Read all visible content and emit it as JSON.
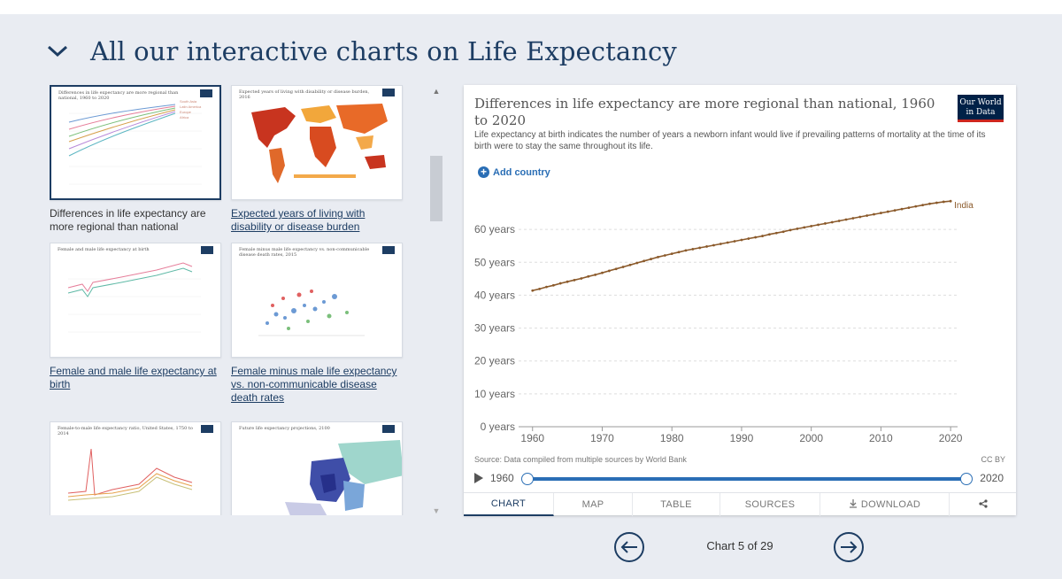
{
  "header": {
    "title": "All our interactive charts on Life Expectancy"
  },
  "gallery": [
    {
      "caption": "Differences in life expectancy are more regional than national",
      "thumb_title": "Differences in life expectancy are more regional than national, 1960 to 2020",
      "active": true
    },
    {
      "caption": "Expected years of living with disability or disease burden",
      "thumb_title": "Expected years of living with disability or disease burden, 2016",
      "active": false
    },
    {
      "caption": "Female and male life expectancy at birth",
      "thumb_title": "Female and male life expectancy at birth",
      "active": false
    },
    {
      "caption": "Female minus male life expectancy vs. non-communicable disease death rates",
      "thumb_title": "Female minus male life expectancy vs. non-communicable disease death rates, 2015",
      "active": false
    },
    {
      "caption": "",
      "thumb_title": "Female-to-male life expectancy ratio, United States, 1750 to 2014",
      "active": false
    },
    {
      "caption": "",
      "thumb_title": "Future life expectancy projections, 2100",
      "active": false
    }
  ],
  "panel": {
    "title": "Differences in life expectancy are more regional than national, 1960 to 2020",
    "subtitle": "Life expectancy at birth indicates the number of years a newborn infant would live if prevailing patterns of mortality at the time of its birth were to stay the same throughout its life.",
    "logo": {
      "line1": "Our World",
      "line2": "in Data"
    },
    "add_country": "Add country",
    "source": "Source: Data compiled from multiple sources by World Bank",
    "license": "CC BY",
    "timeline": {
      "start": "1960",
      "end": "2020"
    },
    "tabs": [
      "CHART",
      "MAP",
      "TABLE",
      "SOURCES",
      "DOWNLOAD"
    ]
  },
  "chart_data": {
    "type": "line",
    "title": "Differences in life expectancy are more regional than national, 1960 to 2020",
    "xlabel": "",
    "ylabel": "",
    "xlim": [
      1958,
      2021
    ],
    "ylim": [
      0,
      70
    ],
    "x_ticks": [
      1960,
      1970,
      1980,
      1990,
      2000,
      2010,
      2020
    ],
    "y_ticks": [
      0,
      10,
      20,
      30,
      40,
      50,
      60
    ],
    "y_tick_labels": [
      "0 years",
      "10 years",
      "20 years",
      "30 years",
      "40 years",
      "50 years",
      "60 years"
    ],
    "x_tick_labels": [
      "1960",
      "1970",
      "1980",
      "1990",
      "2000",
      "2010",
      "2020"
    ],
    "grid": true,
    "series": [
      {
        "name": "India",
        "color": "#8b5a2b",
        "x": [
          1960,
          1961,
          1962,
          1963,
          1964,
          1965,
          1966,
          1967,
          1968,
          1969,
          1970,
          1971,
          1972,
          1973,
          1974,
          1975,
          1976,
          1977,
          1978,
          1979,
          1980,
          1981,
          1982,
          1983,
          1984,
          1985,
          1986,
          1987,
          1988,
          1989,
          1990,
          1991,
          1992,
          1993,
          1994,
          1995,
          1996,
          1997,
          1998,
          1999,
          2000,
          2001,
          2002,
          2003,
          2004,
          2005,
          2006,
          2007,
          2008,
          2009,
          2010,
          2011,
          2012,
          2013,
          2014,
          2015,
          2016,
          2017,
          2018,
          2019,
          2020
        ],
        "values": [
          41.4,
          41.9,
          42.5,
          43.0,
          43.6,
          44.1,
          44.6,
          45.1,
          45.7,
          46.2,
          46.8,
          47.4,
          48.0,
          48.6,
          49.2,
          49.8,
          50.4,
          51.0,
          51.6,
          52.1,
          52.6,
          53.1,
          53.6,
          54.0,
          54.4,
          54.8,
          55.2,
          55.6,
          56.0,
          56.4,
          56.8,
          57.2,
          57.6,
          58.0,
          58.5,
          58.9,
          59.3,
          59.8,
          60.2,
          60.6,
          61.0,
          61.4,
          61.8,
          62.2,
          62.6,
          63.0,
          63.4,
          63.8,
          64.2,
          64.6,
          65.0,
          65.4,
          65.8,
          66.2,
          66.6,
          67.0,
          67.4,
          67.8,
          68.1,
          68.4,
          68.6
        ]
      }
    ]
  },
  "pager": {
    "label": "Chart 5 of 29"
  }
}
